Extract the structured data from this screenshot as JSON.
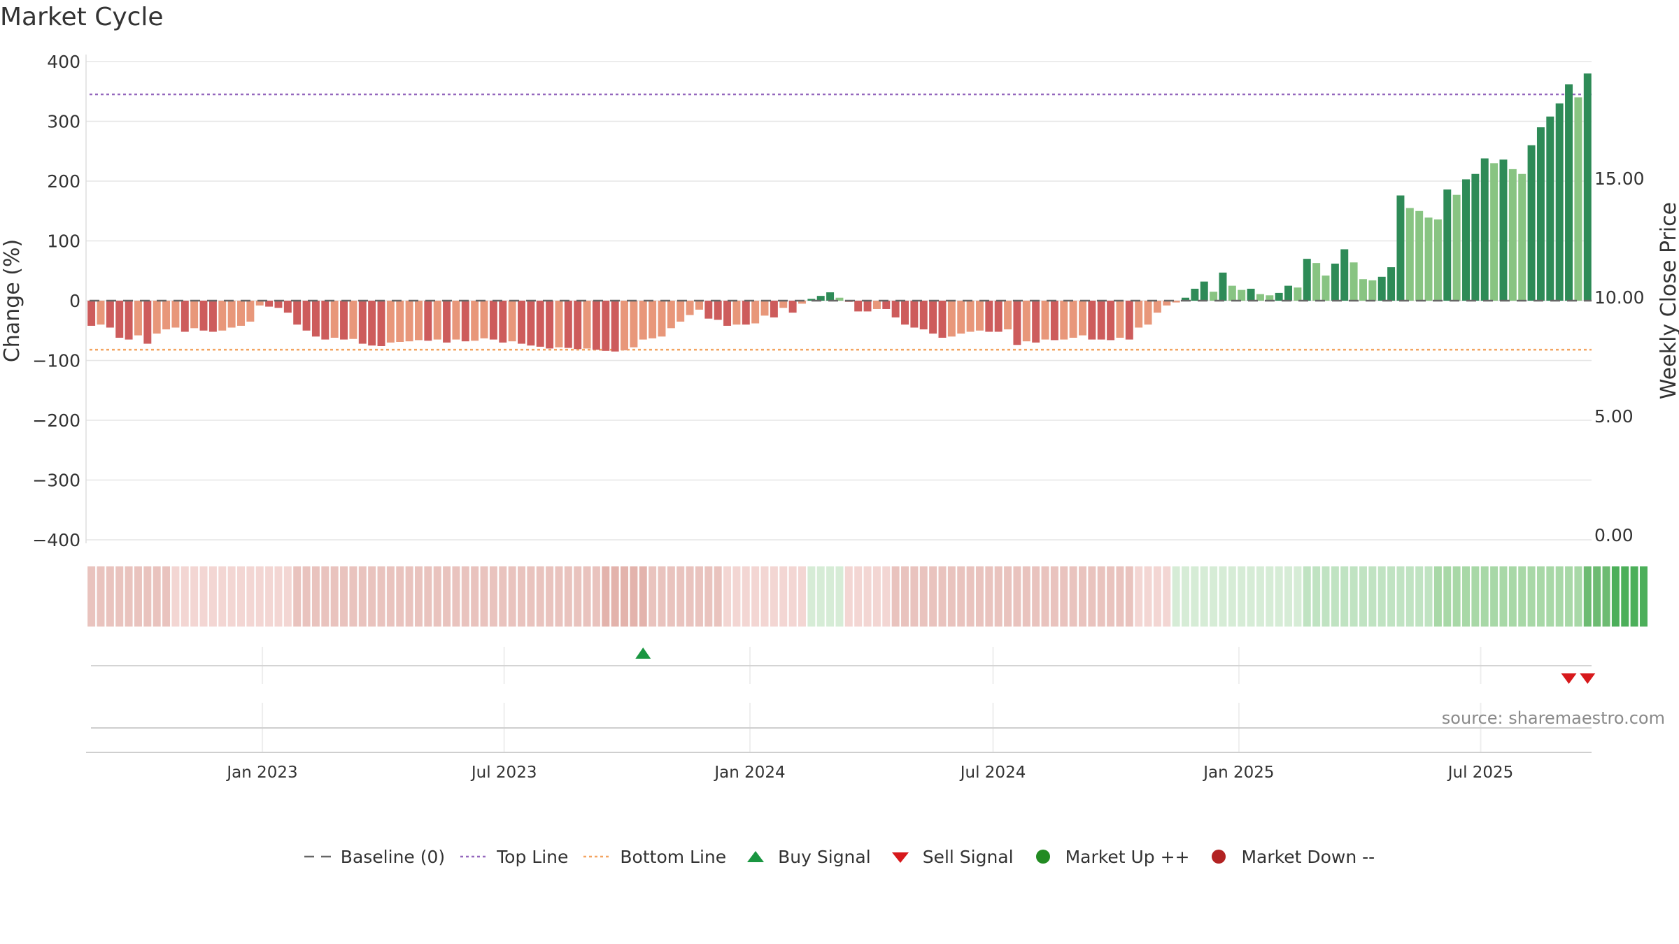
{
  "chart_data": {
    "type": "bar",
    "title": "Market Cycle",
    "ylabel": "Change (%)",
    "ylabel_right": "Weekly Close Price",
    "ylim": [
      -400,
      400
    ],
    "yticks": [
      "400",
      "300",
      "200",
      "100",
      "0",
      "−100",
      "−200",
      "−300",
      "−400"
    ],
    "y_right_ticks": [
      "15.00",
      "10.00",
      "5.00",
      "0.00"
    ],
    "y_right_tick_values": [
      15,
      10,
      5,
      0
    ],
    "y_right_range": [
      0,
      20
    ],
    "x_ticks": [
      "Jan 2023",
      "Jul 2023",
      "Jan 2024",
      "Jul 2024",
      "Jan 2025",
      "Jul 2025"
    ],
    "x_tick_dates": [
      "2023-01-01",
      "2023-07-01",
      "2024-01-01",
      "2024-07-01",
      "2025-01-01",
      "2025-07-01"
    ],
    "x_range": [
      "2022-08-22",
      "2025-09-22"
    ],
    "first_week": "2022-08-26",
    "top_line": 345,
    "bottom_line": -82,
    "grid": true,
    "source": "source: sharemaestro.com",
    "values": [
      -42,
      -40,
      -45,
      -62,
      -65,
      -58,
      -72,
      -55,
      -48,
      -45,
      -52,
      -46,
      -50,
      -52,
      -50,
      -45,
      -42,
      -35,
      -8,
      -10,
      -12,
      -20,
      -40,
      -50,
      -60,
      -65,
      -62,
      -65,
      -64,
      -72,
      -75,
      -76,
      -70,
      -69,
      -68,
      -66,
      -67,
      -65,
      -70,
      -65,
      -68,
      -67,
      -63,
      -65,
      -70,
      -68,
      -72,
      -75,
      -77,
      -80,
      -78,
      -79,
      -81,
      -80,
      -82,
      -84,
      -85,
      -83,
      -78,
      -65,
      -63,
      -60,
      -46,
      -35,
      -24,
      -15,
      -30,
      -32,
      -42,
      -40,
      -40,
      -38,
      -25,
      -28,
      -12,
      -20,
      -5,
      3,
      8,
      14,
      5,
      -2,
      -18,
      -18,
      -14,
      -14,
      -28,
      -40,
      -45,
      -48,
      -55,
      -62,
      -60,
      -55,
      -52,
      -50,
      -52,
      -52,
      -48,
      -74,
      -68,
      -70,
      -65,
      -66,
      -65,
      -62,
      -58,
      -65,
      -65,
      -66,
      -62,
      -65,
      -45,
      -40,
      -20,
      -8,
      -3,
      5,
      20,
      32,
      15,
      47,
      25,
      18,
      20,
      11,
      9,
      13,
      25,
      22,
      70,
      63,
      42,
      62,
      86,
      64,
      36,
      34,
      40,
      56,
      176,
      155,
      150,
      139,
      136,
      186,
      177,
      203,
      212,
      238,
      230,
      236,
      220,
      212,
      260,
      290,
      308,
      330,
      362,
      340,
      380
    ],
    "mood_levels": [
      2,
      2,
      2,
      2,
      2,
      2,
      2,
      2,
      2,
      1,
      1,
      1,
      1,
      1,
      1,
      1,
      1,
      1,
      1,
      1,
      1,
      1,
      2,
      2,
      2,
      2,
      2,
      2,
      2,
      2,
      2,
      2,
      2,
      2,
      2,
      2,
      2,
      2,
      2,
      2,
      2,
      2,
      2,
      2,
      2,
      2,
      2,
      2,
      2,
      2,
      2,
      2,
      2,
      2,
      2,
      3,
      3,
      3,
      3,
      3,
      2,
      2,
      2,
      2,
      2,
      2,
      2,
      2,
      1,
      1,
      1,
      1,
      1,
      1,
      1,
      1,
      1,
      -1,
      -1,
      -1,
      -1,
      1,
      1,
      1,
      1,
      1,
      2,
      2,
      2,
      2,
      2,
      2,
      2,
      2,
      2,
      2,
      2,
      2,
      2,
      2,
      2,
      2,
      2,
      2,
      2,
      2,
      2,
      2,
      2,
      2,
      2,
      2,
      1,
      1,
      1,
      1,
      -1,
      -1,
      -1,
      -1,
      -1,
      -1,
      -1,
      -1,
      -1,
      -1,
      -1,
      -1,
      -1,
      -1,
      -2,
      -2,
      -2,
      -2,
      -2,
      -2,
      -2,
      -2,
      -2,
      -2,
      -2,
      -2,
      -2,
      -2,
      -3,
      -3,
      -3,
      -3,
      -3,
      -3,
      -3,
      -3,
      -3,
      -3,
      -3,
      -3,
      -3,
      -3,
      -3,
      -3,
      -4,
      -4,
      -4,
      -4,
      -4,
      -4,
      -4
    ],
    "buy_signals": [
      "2023-10-13"
    ],
    "sell_signals": [
      "2025-09-05",
      "2025-09-19"
    ],
    "colors": {
      "up_strong": "#2e8b57",
      "up_weak": "#88c482",
      "down_strong": "#cd5c5c",
      "down_weak": "#e8977a",
      "top_line": "#9467bd",
      "bottom_line": "#f4a460",
      "baseline": "#666666",
      "buy": "#1a9641",
      "sell": "#d7191c",
      "market_up": "#228b22",
      "market_down": "#b22222",
      "grid": "#e6e6e6"
    },
    "legend": [
      {
        "label": "Baseline (0)",
        "icon": "dash-line",
        "color": "#666666"
      },
      {
        "label": "Top Line",
        "icon": "dotted-line",
        "color": "#9467bd"
      },
      {
        "label": "Bottom Line",
        "icon": "dotted-line",
        "color": "#f4a460"
      },
      {
        "label": "Buy Signal",
        "icon": "triangle-up",
        "color": "#1a9641"
      },
      {
        "label": "Sell Signal",
        "icon": "triangle-down",
        "color": "#d7191c"
      },
      {
        "label": "Market Up ++",
        "icon": "circle",
        "color": "#228b22"
      },
      {
        "label": "Market Down --",
        "icon": "circle",
        "color": "#b22222"
      }
    ]
  }
}
